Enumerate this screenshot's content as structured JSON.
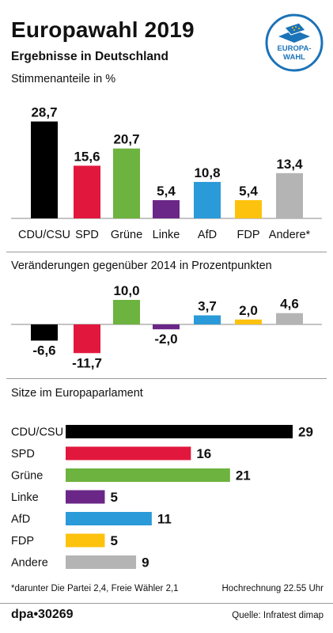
{
  "header": {
    "title": "Europawahl 2019",
    "subtitle": "Ergebnisse in Deutschland"
  },
  "logo": {
    "icon": "europawahl-ballot-box-icon",
    "line1": "EUROPA-",
    "line2": "WAHL"
  },
  "colors": {
    "CDU/CSU": "#000000",
    "SPD": "#e2173d",
    "Grüne": "#6db33f",
    "Linke": "#6a2787",
    "AfD": "#2a9ad8",
    "FDP": "#fdc20e",
    "Andere": "#b4b4b4",
    "logo_blue": "#1b73b8"
  },
  "chart_data": [
    {
      "type": "bar",
      "title": "Stimmenanteile in %",
      "categories": [
        "CDU/CSU",
        "SPD",
        "Grüne",
        "Linke",
        "AfD",
        "FDP",
        "Andere*"
      ],
      "values": [
        28.7,
        15.6,
        20.7,
        5.4,
        10.8,
        5.4,
        13.4
      ],
      "value_labels": [
        "28,7",
        "15,6",
        "20,7",
        "5,4",
        "10,8",
        "5,4",
        "13,4"
      ],
      "ylim": [
        0,
        30
      ],
      "grid": false
    },
    {
      "type": "bar",
      "title": "Veränderungen gegenüber 2014 in Prozentpunkten",
      "categories": [
        "CDU/CSU",
        "SPD",
        "Grüne",
        "Linke",
        "AfD",
        "FDP",
        "Andere"
      ],
      "values": [
        -6.6,
        -11.7,
        10.0,
        -2.0,
        3.7,
        2.0,
        4.6
      ],
      "value_labels": [
        "-6,6",
        "-11,7",
        "10,0",
        "-2,0",
        "3,7",
        "2,0",
        "4,6"
      ],
      "ylim": [
        -12,
        10
      ],
      "grid": false
    },
    {
      "type": "bar",
      "orientation": "horizontal",
      "title": "Sitze im Europaparlament",
      "categories": [
        "CDU/CSU",
        "SPD",
        "Grüne",
        "Linke",
        "AfD",
        "FDP",
        "Andere"
      ],
      "values": [
        29,
        16,
        21,
        5,
        11,
        5,
        9
      ],
      "value_labels": [
        "29",
        "16",
        "21",
        "5",
        "11",
        "5",
        "9"
      ],
      "xlim": [
        0,
        29
      ],
      "grid": false
    }
  ],
  "footer": {
    "footnote": "*darunter Die Partei 2,4, Freie Wähler 2,1",
    "timestamp": "Hochrechnung 22.55 Uhr",
    "agency": "dpa•30269",
    "source": "Quelle: Infratest dimap"
  }
}
